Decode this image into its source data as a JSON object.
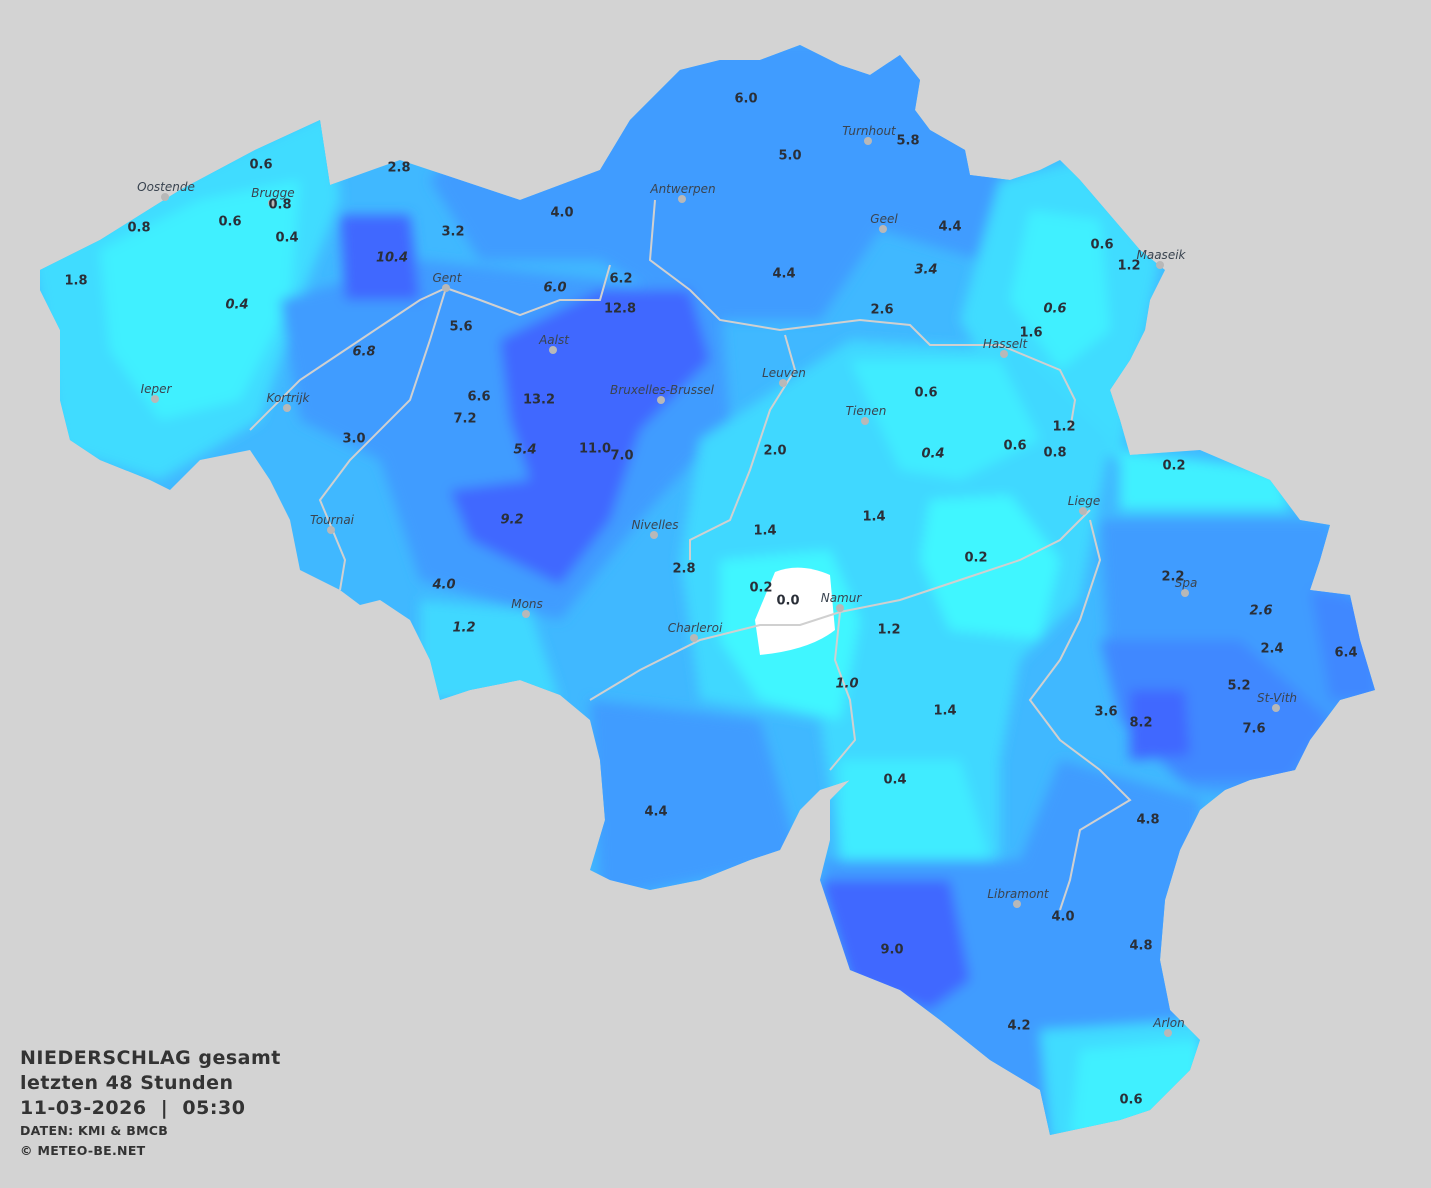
{
  "legend": {
    "title": "NIEDERSCHLAG gesamt",
    "period": "letzten 48 Stunden",
    "datetime": "11-03-2026  |  05:30",
    "source": "DATEN: KMI & BMCB",
    "copyright": "© METEO-BE.NET"
  },
  "colors": {
    "background": "#d3d3d3",
    "none": "#ffffff",
    "very_light": "#40f4ff",
    "light": "#40d8ff",
    "medium": "#40b4ff",
    "heavy": "#3f98ff",
    "very_heavy": "#4068ff",
    "rivers": "#d0d0d0"
  },
  "cities": [
    "Turnhout",
    "Oostende",
    "Brugge",
    "Antwerpen",
    "Geel",
    "Maaseik",
    "Gent",
    "Hasselt",
    "Aalst",
    "Leuven",
    "Bruxelles-Brussel",
    "Ieper",
    "Kortrijk",
    "Tienen",
    "Liege",
    "Tournai",
    "Nivelles",
    "Spa",
    "Namur",
    "Mons",
    "Charleroi",
    "St-Vith",
    "Libramont",
    "Arlon"
  ],
  "values": [
    {
      "v": "6.0"
    },
    {
      "v": "5.0"
    },
    {
      "v": "5.8"
    },
    {
      "v": "0.6"
    },
    {
      "v": "2.8"
    },
    {
      "v": "0.8"
    },
    {
      "v": "0.8"
    },
    {
      "v": "0.6"
    },
    {
      "v": "0.4"
    },
    {
      "v": "4.0"
    },
    {
      "v": "10.4",
      "italic": true
    },
    {
      "v": "3.2"
    },
    {
      "v": "4.4"
    },
    {
      "v": "0.6"
    },
    {
      "v": "1.2"
    },
    {
      "v": "1.8"
    },
    {
      "v": "0.4",
      "italic": true
    },
    {
      "v": "3.4",
      "italic": true
    },
    {
      "v": "4.4"
    },
    {
      "v": "6.2"
    },
    {
      "v": "6.0",
      "italic": true
    },
    {
      "v": "12.8"
    },
    {
      "v": "2.6"
    },
    {
      "v": "0.6",
      "italic": true
    },
    {
      "v": "5.6"
    },
    {
      "v": "1.6"
    },
    {
      "v": "6.8",
      "italic": true
    },
    {
      "v": "0.6"
    },
    {
      "v": "6.6"
    },
    {
      "v": "13.2"
    },
    {
      "v": "7.2"
    },
    {
      "v": "1.2"
    },
    {
      "v": "3.0"
    },
    {
      "v": "5.4",
      "italic": true
    },
    {
      "v": "11.0"
    },
    {
      "v": "7.0"
    },
    {
      "v": "2.0"
    },
    {
      "v": "0.4",
      "italic": true
    },
    {
      "v": "0.6"
    },
    {
      "v": "0.8"
    },
    {
      "v": "0.2"
    },
    {
      "v": "9.2",
      "italic": true
    },
    {
      "v": "1.4"
    },
    {
      "v": "1.4"
    },
    {
      "v": "0.2"
    },
    {
      "v": "2.8"
    },
    {
      "v": "2.2"
    },
    {
      "v": "0.2"
    },
    {
      "v": "0.0"
    },
    {
      "v": "4.0",
      "italic": true
    },
    {
      "v": "2.6",
      "italic": true
    },
    {
      "v": "1.2",
      "italic": true
    },
    {
      "v": "1.2"
    },
    {
      "v": "2.4"
    },
    {
      "v": "6.4"
    },
    {
      "v": "1.0",
      "italic": true
    },
    {
      "v": "5.2"
    },
    {
      "v": "1.4"
    },
    {
      "v": "3.6"
    },
    {
      "v": "8.2"
    },
    {
      "v": "7.6"
    },
    {
      "v": "0.4"
    },
    {
      "v": "4.4"
    },
    {
      "v": "4.8"
    },
    {
      "v": "4.0"
    },
    {
      "v": "9.0"
    },
    {
      "v": "4.8"
    },
    {
      "v": "4.2"
    },
    {
      "v": "0.6"
    }
  ]
}
